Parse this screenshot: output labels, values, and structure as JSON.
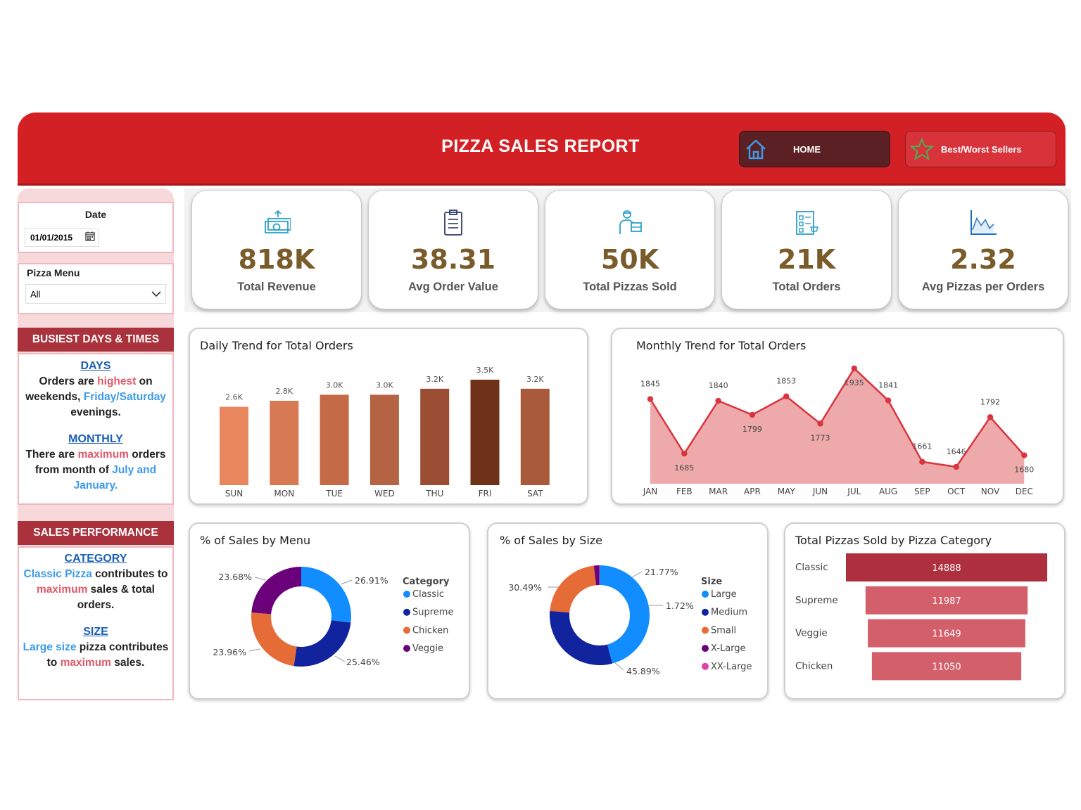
{
  "header": {
    "title": "PIZZA SALES REPORT",
    "home_label": "HOME",
    "best_label": "Best/Worst Sellers"
  },
  "filters": {
    "date_label": "Date",
    "date_value": "01/01/2015",
    "menu_label": "Pizza Menu",
    "menu_value": "All"
  },
  "busiest": {
    "title": "BUSIEST DAYS & TIMES",
    "days_heading": "DAYS",
    "days_p1": "Orders are ",
    "days_hl": "highest",
    "days_p2": " on weekends, ",
    "days_blue": "Friday/Saturday",
    "days_p3": " evenings.",
    "monthly_heading": "MONTHLY",
    "monthly_p1": "There are ",
    "monthly_hl": "maximum",
    "monthly_p2": " orders from month of ",
    "monthly_blue": "July and January."
  },
  "performance": {
    "title": "SALES PERFORMANCE",
    "category_heading": "CATEGORY",
    "cat_blue": "Classic Pizza",
    "cat_p1": " contributes to ",
    "cat_hl": "maximum",
    "cat_p2": " sales & total orders.",
    "size_heading": "SIZE",
    "size_blue": "Large size",
    "size_p1": " pizza contributes to ",
    "size_hl": "maximum",
    "size_p2": " sales."
  },
  "kpis": [
    {
      "value": "818K",
      "label": "Total Revenue",
      "icon": "money-icon"
    },
    {
      "value": "38.31",
      "label": "Avg Order Value",
      "icon": "clipboard-icon"
    },
    {
      "value": "50K",
      "label": "Total Pizzas Sold",
      "icon": "delivery-icon"
    },
    {
      "value": "21K",
      "label": "Total Orders",
      "icon": "checklist-icon"
    },
    {
      "value": "2.32",
      "label": "Avg Pizzas per Orders",
      "icon": "line-chart-icon"
    }
  ],
  "chart_data": [
    {
      "type": "bar",
      "title": "Daily Trend for Total Orders",
      "categories": [
        "SUN",
        "MON",
        "TUE",
        "WED",
        "THU",
        "FRI",
        "SAT"
      ],
      "values": [
        2.6,
        2.8,
        3.0,
        3.0,
        3.2,
        3.5,
        3.2
      ],
      "data_labels": [
        "2.6K",
        "2.8K",
        "3.0K",
        "3.0K",
        "3.2K",
        "3.5K",
        "3.2K"
      ],
      "colors": [
        "#e8875d",
        "#d77a53",
        "#c46a47",
        "#b46443",
        "#9b4e33",
        "#6f3219",
        "#a85a3b"
      ],
      "ylim": [
        0,
        3.5
      ]
    },
    {
      "type": "area",
      "title": "Monthly Trend for Total Orders",
      "categories": [
        "JAN",
        "FEB",
        "MAR",
        "APR",
        "MAY",
        "JUN",
        "JUL",
        "AUG",
        "SEP",
        "OCT",
        "NOV",
        "DEC"
      ],
      "values": [
        1845,
        1685,
        1840,
        1799,
        1853,
        1773,
        1935,
        1841,
        1661,
        1646,
        1792,
        1680
      ],
      "line_color": "#d9343f",
      "fill_color": "#eeaaaa"
    },
    {
      "type": "pie",
      "title": "% of Sales by Menu",
      "legend_title": "Category",
      "labels": [
        "Classic",
        "Supreme",
        "Chicken",
        "Veggie"
      ],
      "values": [
        26.91,
        25.46,
        23.96,
        23.68
      ],
      "value_labels": [
        "26.91%",
        "25.46%",
        "23.96%",
        "23.68%"
      ],
      "colors": [
        "#118dff",
        "#12239e",
        "#e66c37",
        "#6b007b"
      ],
      "legend": "right"
    },
    {
      "type": "pie",
      "title": "% of Sales by Size",
      "legend_title": "Size",
      "labels": [
        "Large",
        "Medium",
        "Small",
        "X-Large",
        "XX-Large"
      ],
      "values": [
        45.89,
        30.49,
        21.77,
        1.72,
        0.12
      ],
      "value_labels": [
        "45.89%",
        "30.49%",
        "21.77%",
        "1.72%",
        ""
      ],
      "colors": [
        "#118dff",
        "#12239e",
        "#e66c37",
        "#6b007b",
        "#e044a7"
      ],
      "legend": "right"
    },
    {
      "type": "bar",
      "title": "Total Pizzas Sold by Pizza Category",
      "categories": [
        "Classic",
        "Supreme",
        "Veggie",
        "Chicken"
      ],
      "values": [
        14888,
        11987,
        11649,
        11050
      ],
      "colors": [
        "#ae2f3d",
        "#d35f6b",
        "#d35f6b",
        "#d35f6b"
      ]
    }
  ]
}
